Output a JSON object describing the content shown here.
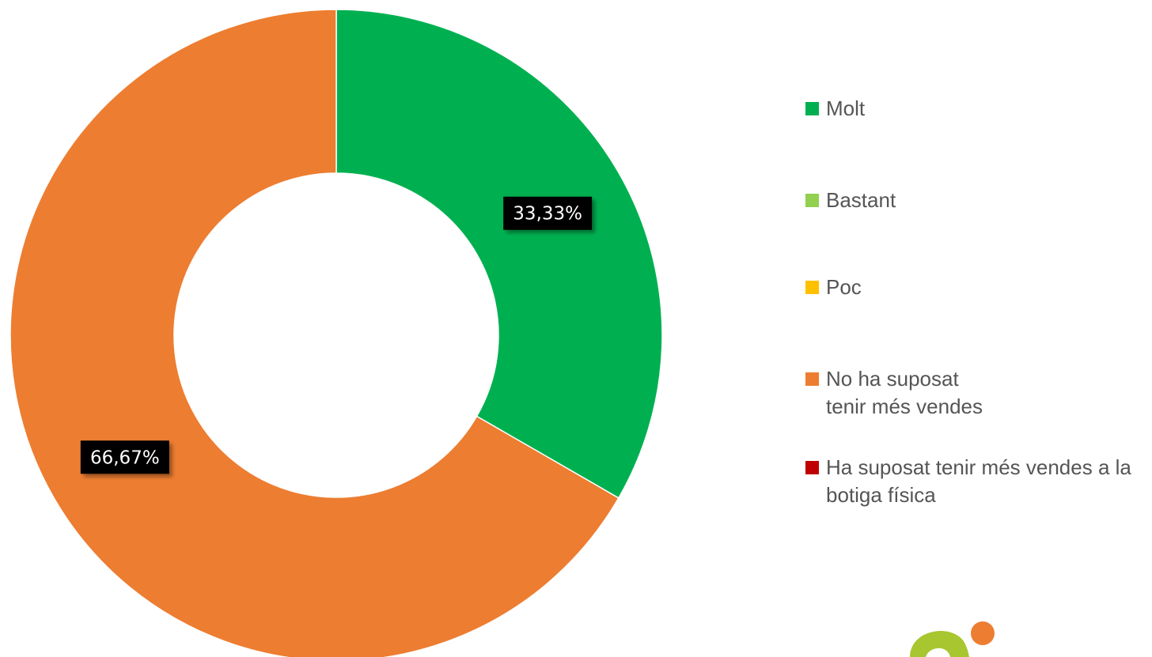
{
  "chart_data": {
    "type": "pie",
    "variant": "donut",
    "categories": [
      "Molt",
      "Bastant",
      "Poc",
      "No ha suposat tenir més vendes",
      "Ha suposat tenir més vendes a la botiga física"
    ],
    "values": [
      33.33,
      0,
      0,
      66.67,
      0
    ],
    "data_labels": [
      "33,33%",
      "",
      "",
      "66,67%",
      ""
    ],
    "colors": [
      "#00B050",
      "#92D050",
      "#FFC000",
      "#ED7D31",
      "#C00000"
    ],
    "unit": "%",
    "start_angle_deg": 0,
    "direction": "clockwise",
    "legend_position": "right"
  },
  "decoration": {
    "logo_colors": [
      "#A8C62F",
      "#ED7D31"
    ],
    "logo_icon": "brand-logo-icon"
  }
}
